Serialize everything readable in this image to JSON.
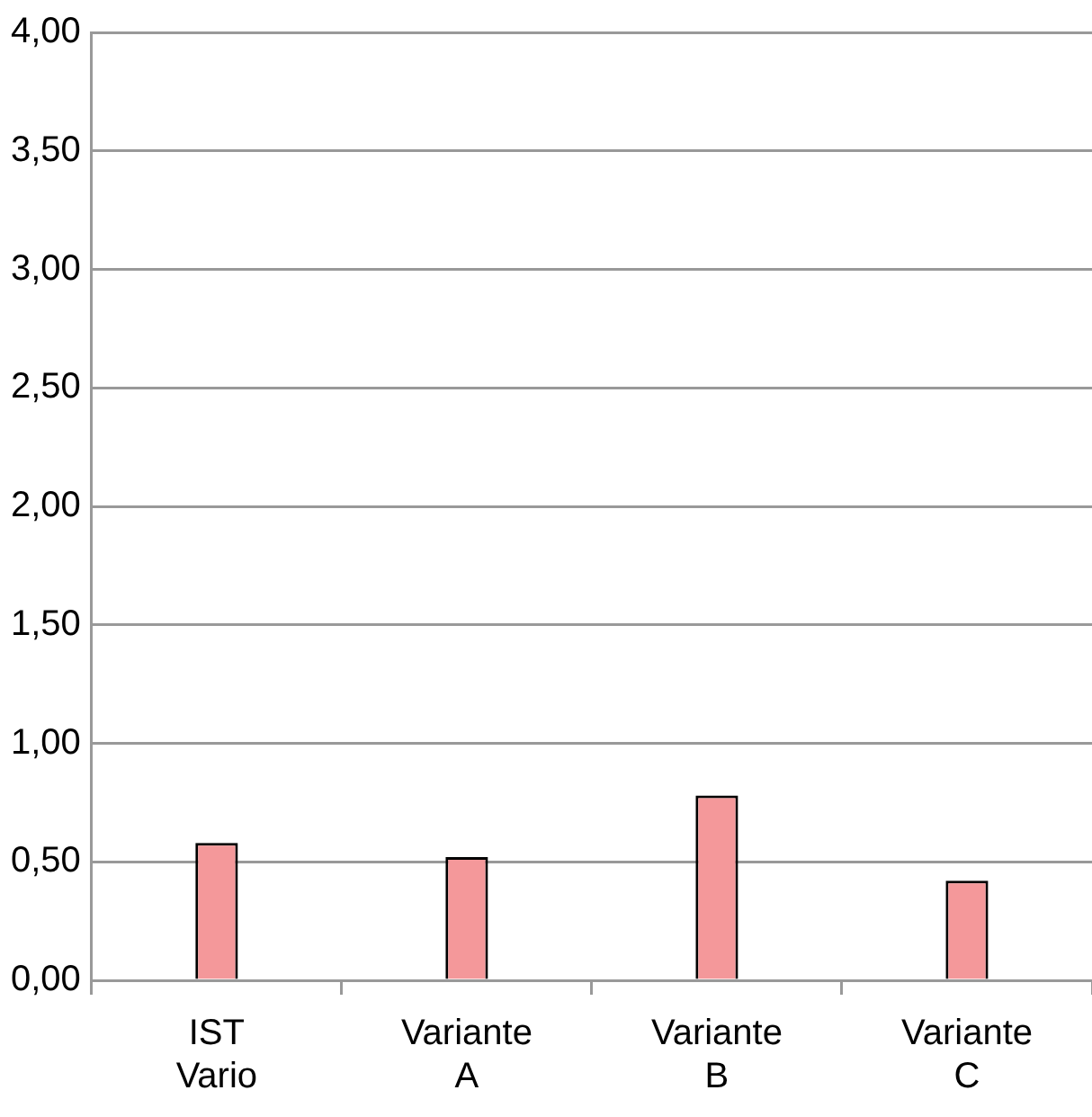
{
  "chart_data": {
    "type": "bar",
    "categories": [
      "IST Vario",
      "Variante A",
      "Variante B",
      "Variante C"
    ],
    "values": [
      0.58,
      0.52,
      0.78,
      0.42
    ],
    "color": "#f4989a",
    "ylim": [
      0,
      4
    ],
    "yticks": [
      {
        "value": 0,
        "label": "0,00"
      },
      {
        "value": 0.5,
        "label": "0,50"
      },
      {
        "value": 1,
        "label": "1,00"
      },
      {
        "value": 1.5,
        "label": "1,50"
      },
      {
        "value": 2,
        "label": "2,00"
      },
      {
        "value": 2.5,
        "label": "2,50"
      },
      {
        "value": 3,
        "label": "3,00"
      },
      {
        "value": 3.5,
        "label": "3,50"
      },
      {
        "value": 4,
        "label": "4,00"
      }
    ],
    "grid": "y",
    "legend": false
  }
}
